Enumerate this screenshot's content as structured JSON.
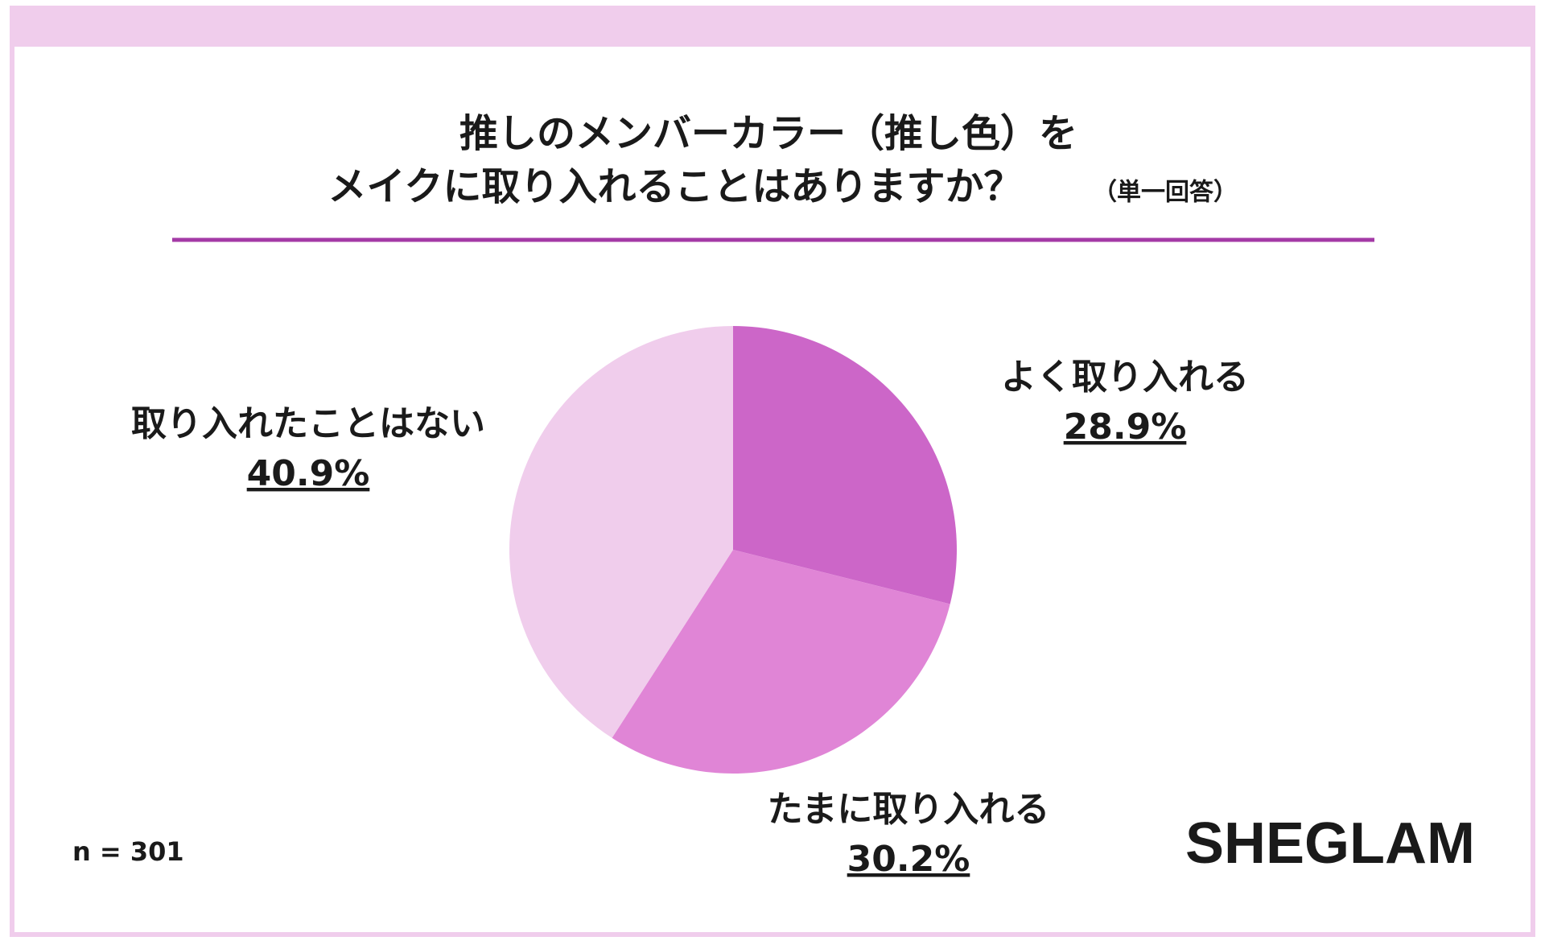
{
  "chart_data": {
    "type": "pie",
    "title": [
      "推しのメンバーカラー（推し色）を",
      "メイクに取り入れることはありますか？"
    ],
    "subtitle": "（単一回答）",
    "categories": [
      "よく取り入れる",
      "たまに取り入れる",
      "取り入れたことはない"
    ],
    "values": [
      28.9,
      30.2,
      40.9
    ],
    "value_labels": [
      "28.9%",
      "30.2%",
      "40.9%"
    ],
    "colors": [
      "#cc66c8",
      "#e085d6",
      "#f0cdec"
    ],
    "note": "n = 301",
    "brand": "SHEGLAM"
  }
}
